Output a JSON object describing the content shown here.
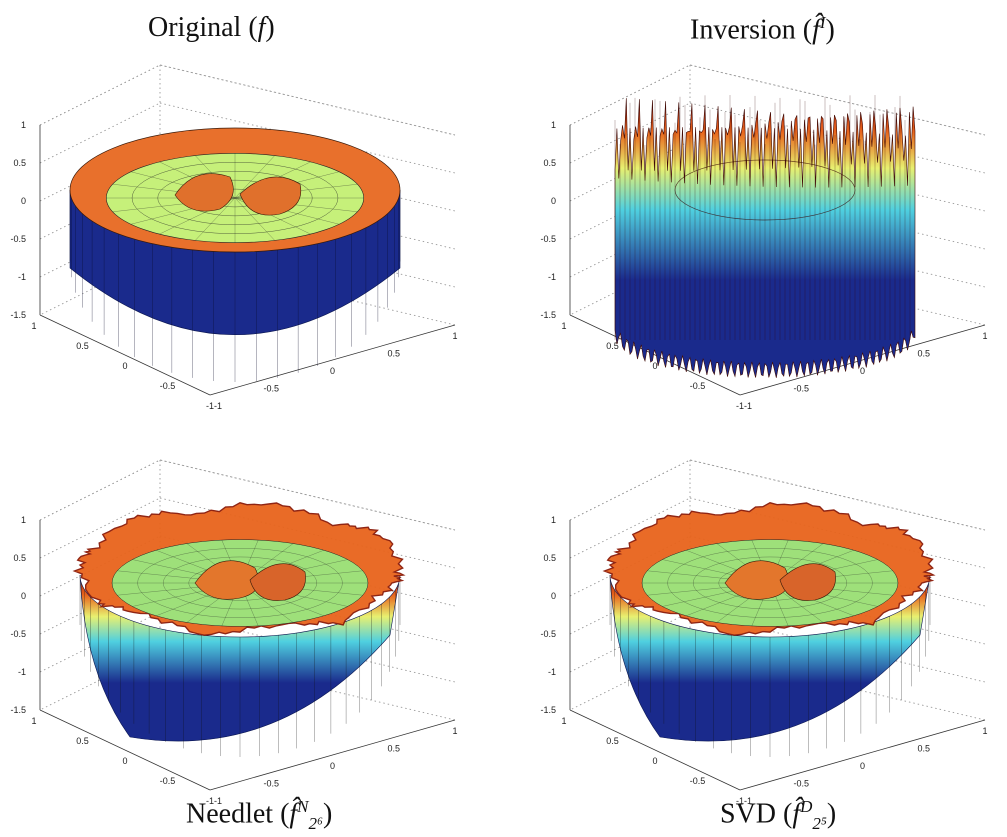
{
  "figure": {
    "panels": [
      {
        "key": "original",
        "name": "Original",
        "symbol": "f",
        "sup": "",
        "sub": ""
      },
      {
        "key": "inversion",
        "name": "Inversion",
        "symbol": "f̂",
        "sup": "I",
        "sub": ""
      },
      {
        "key": "needlet",
        "name": "Needlet",
        "symbol": "f̂",
        "sup": "N",
        "sub": "2⁶"
      },
      {
        "key": "svd",
        "name": "SVD",
        "symbol": "f̂",
        "sup": "D",
        "sub": "2⁵"
      }
    ],
    "z_ticks": [
      "1",
      "0.5",
      "0",
      "-0.5",
      "-1",
      "-1.5"
    ],
    "left_axis_ticks": [
      "1",
      "0.5",
      "0",
      "-0.5",
      "-1"
    ],
    "right_axis_ticks": [
      "-1",
      "-0.5",
      "0",
      "0.5",
      "1"
    ]
  },
  "colors": {
    "surface_low": "#1a2a8c",
    "surface_mid": "#4fd0e0",
    "surface_yellow": "#e8f070",
    "surface_high": "#e8641c",
    "surface_top": "#a01810"
  }
}
